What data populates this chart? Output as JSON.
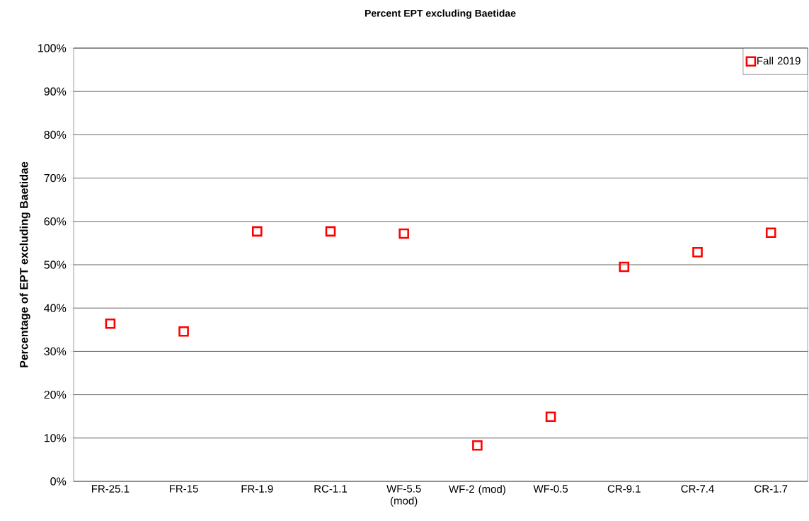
{
  "chart_data": {
    "type": "scatter",
    "title": "Percent EPT excluding Baetidae",
    "ylabel": "Percentage of EPT excluding Baetidae",
    "categories": [
      "FR-25.1",
      "FR-15",
      "FR-1.9",
      "RC-1.1",
      "WF-5.5 (mod)",
      "WF-2 (mod)",
      "WF-0.5",
      "CR-9.1",
      "CR-7.4",
      "CR-1.7"
    ],
    "series": [
      {
        "name": "Fall 2019",
        "color": "#ff0000",
        "values": [
          36.4,
          34.6,
          57.7,
          57.7,
          57.2,
          8.3,
          14.9,
          49.5,
          52.9,
          57.4
        ]
      }
    ],
    "ylim": [
      0,
      100
    ],
    "yticks": [
      {
        "value": 0,
        "label": "0%"
      },
      {
        "value": 10,
        "label": "10%"
      },
      {
        "value": 20,
        "label": "20%"
      },
      {
        "value": 30,
        "label": "30%"
      },
      {
        "value": 40,
        "label": "40%"
      },
      {
        "value": 50,
        "label": "50%"
      },
      {
        "value": 60,
        "label": "60%"
      },
      {
        "value": 70,
        "label": "70%"
      },
      {
        "value": 80,
        "label": "80%"
      },
      {
        "value": 90,
        "label": "90%"
      },
      {
        "value": 100,
        "label": "100%"
      }
    ],
    "grid": "y",
    "legend": "top right",
    "marker": "square"
  }
}
